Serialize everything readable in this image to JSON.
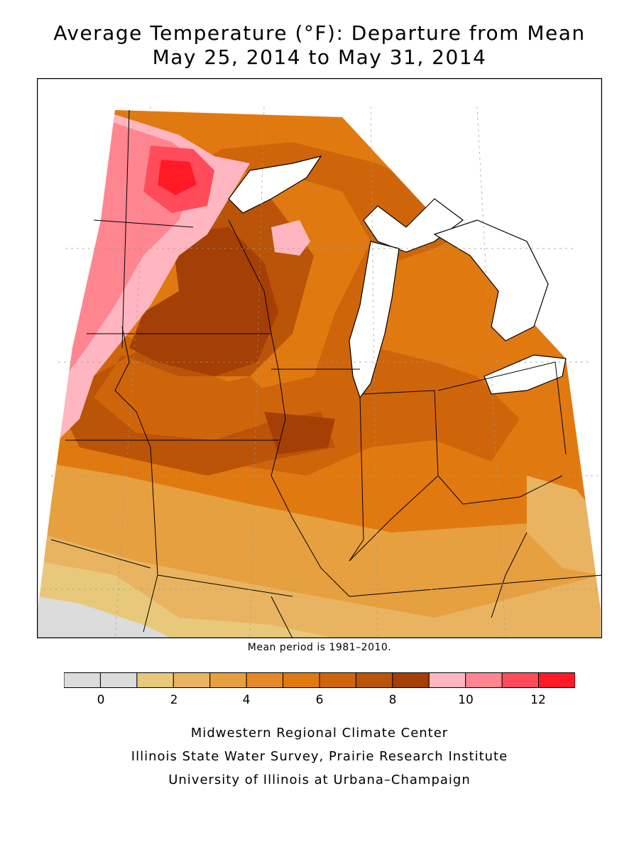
{
  "title": {
    "line1": "Average Temperature (°F): Departure from Mean",
    "line2": "May 25, 2014 to May 31, 2014"
  },
  "mean_period_note": "Mean period is 1981–2010.",
  "legend": {
    "colors": [
      "#dcdcdc",
      "#dcdcdc",
      "#e8c97c",
      "#e8b462",
      "#e6a040",
      "#e48a27",
      "#e07a10",
      "#cf650a",
      "#b95408",
      "#a43f05",
      "#ffb6c1",
      "#ff8591",
      "#ff4b5a",
      "#ff1a26"
    ],
    "tick_labels": [
      "0",
      "2",
      "4",
      "6",
      "8",
      "10",
      "12"
    ]
  },
  "map": {
    "land_color": "#ffffff",
    "lake_color": "#ffffff",
    "border_color": "#000000",
    "region": "Midwest United States"
  },
  "credits": [
    "Midwestern Regional Climate Center",
    "Illinois State Water Survey, Prairie Research Institute",
    "University of Illinois at Urbana–Champaign"
  ]
}
